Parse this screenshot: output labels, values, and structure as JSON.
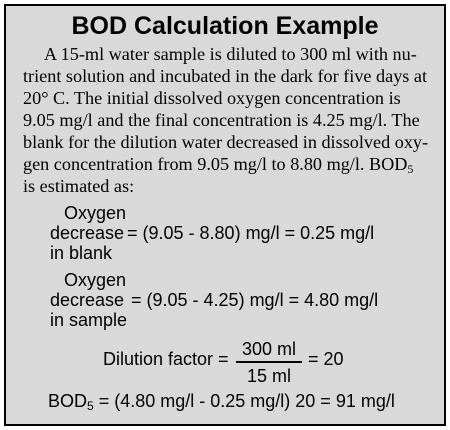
{
  "title": "BOD Calculation Example",
  "paragraph": {
    "lines": [
      "A 15-ml water sample is diluted to 300 ml with nu-",
      "trient solution and incubated in the dark for five days at",
      "20° C. The initial dissolved oxygen concentration is",
      "9.05 mg/l and the final concentration is 4.25 mg/l. The",
      "blank for the dilution water decreased in dissolved oxy-",
      "gen concentration from 9.05 mg/l to 8.80 mg/l. BOD"
    ],
    "line6_subscript": "5",
    "line7": "is estimated as:"
  },
  "blank_calc": {
    "label_line1": "Oxygen",
    "label_line2": "decrease",
    "label_line3": "in blank",
    "equation": "= (9.05 - 8.80) mg/l = 0.25 mg/l"
  },
  "sample_calc": {
    "label_line1": "Oxygen",
    "label_line2": "decrease",
    "label_line3": "in sample",
    "equation": "= (9.05 - 4.25) mg/l = 4.80 mg/l"
  },
  "dilution": {
    "label": "Dilution factor =",
    "numerator": "300 ml",
    "denominator": "15 ml",
    "result": "= 20"
  },
  "bod": {
    "prefix": "BOD",
    "subscript": "5",
    "equation": " = (4.80 mg/l - 0.25 mg/l) 20 = 91 mg/l"
  }
}
